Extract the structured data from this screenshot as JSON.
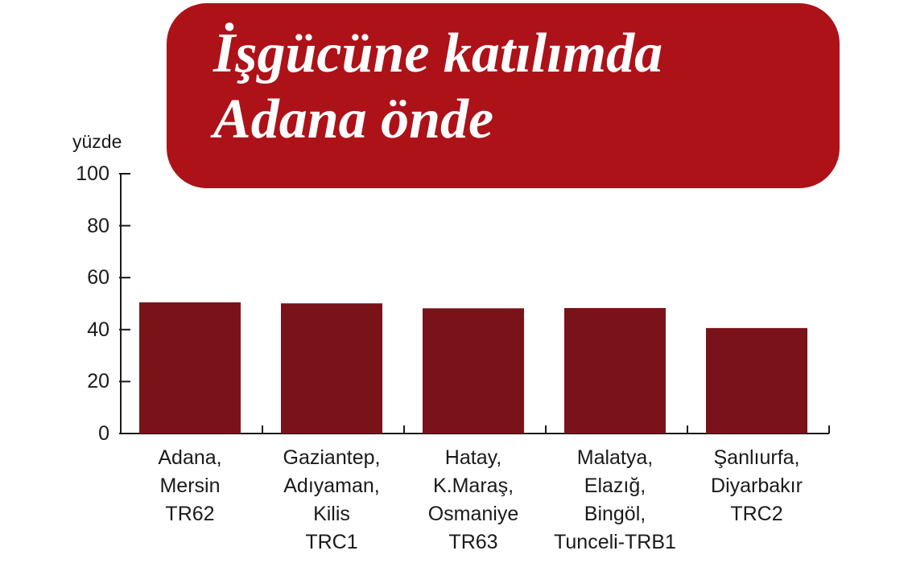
{
  "chart_data": {
    "type": "bar",
    "title": "İşgücüne katılımda Adana önde",
    "title_lines": [
      "İşgücüne katılımda",
      "Adana önde"
    ],
    "ylabel": "yüzde",
    "xlabel": "",
    "ylim": [
      0,
      100
    ],
    "yticks": [
      0,
      20,
      40,
      60,
      80,
      100
    ],
    "categories": [
      "Adana,\nMersin\nTR62",
      "Gaziantep,\nAdıyaman,\nKilis\nTRC1",
      "Hatay,\nK.Maraş,\nOsmaniye\nTR63",
      "Malatya,\nElazığ,\nBingöl,\nTunceli-TRB1",
      "Şanlıurfa,\nDiyarbakır\nTRC2"
    ],
    "values": [
      50.5,
      50.1,
      48.2,
      48.3,
      40.6
    ],
    "grid": false,
    "legend": "none",
    "colors": {
      "bar": "#7a1319",
      "banner": "#ad1219",
      "axis": "#1a1a1a"
    }
  }
}
